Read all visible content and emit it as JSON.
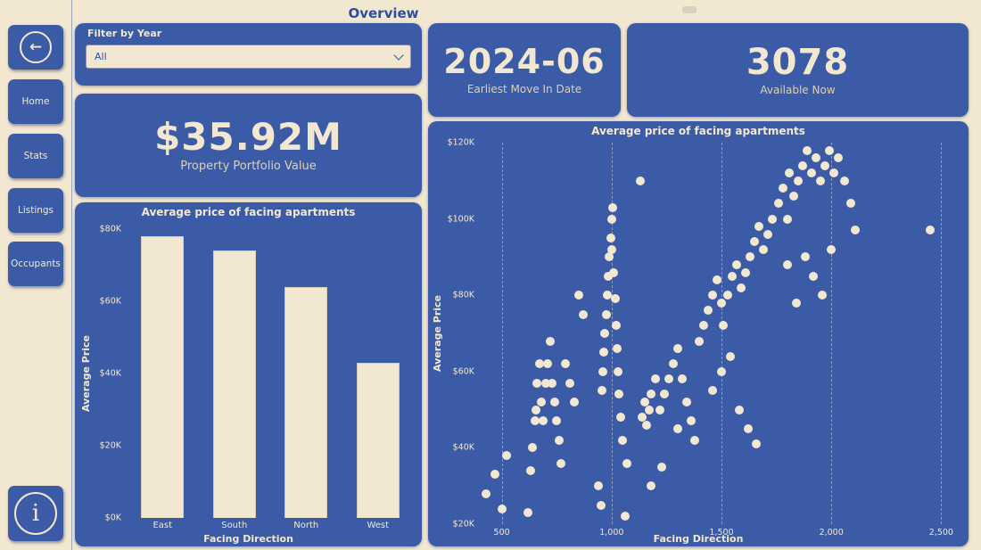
{
  "page": {
    "title": "Overview"
  },
  "sidebar": {
    "items": [
      {
        "label": "Home"
      },
      {
        "label": "Stats"
      },
      {
        "label": "Listings"
      },
      {
        "label": "Occupants"
      }
    ]
  },
  "icons": {
    "back_arrow": "←",
    "info": "i"
  },
  "filter": {
    "label": "Filter by Year",
    "value": "All"
  },
  "kpis": [
    {
      "value": "2024-06",
      "label": "Earliest Move In Date"
    },
    {
      "value": "3078",
      "label": "Available Now"
    },
    {
      "value": "$35.92M",
      "label": "Property Portfolio Value"
    }
  ],
  "colors": {
    "blue": "#3c5ba6",
    "cream": "#f2e8d2"
  },
  "chart_data": [
    {
      "type": "bar",
      "title": "Average price of facing apartments",
      "xlabel": "Facing Direction",
      "ylabel": "Average Price",
      "categories": [
        "East",
        "South",
        "North",
        "West"
      ],
      "values": [
        78,
        74,
        64,
        43
      ],
      "value_unit": "thousand USD",
      "ylim": [
        0,
        80
      ],
      "yticks": [
        {
          "v": 0,
          "label": "$0K"
        },
        {
          "v": 20,
          "label": "$20K"
        },
        {
          "v": 40,
          "label": "$40K"
        },
        {
          "v": 60,
          "label": "$60K"
        },
        {
          "v": 80,
          "label": "$80K"
        }
      ],
      "grid": "off",
      "legend": "none"
    },
    {
      "type": "scatter",
      "title": "Average price of facing apartments",
      "xlabel": "Facing Direction",
      "ylabel": "Average Price",
      "xlim": [
        400,
        2600
      ],
      "ylim": [
        20,
        120
      ],
      "y_unit": "thousand USD",
      "xticks": [
        {
          "v": 500,
          "label": "500"
        },
        {
          "v": 1000,
          "label": "1,000"
        },
        {
          "v": 1500,
          "label": "1,500"
        },
        {
          "v": 2000,
          "label": "2,000"
        },
        {
          "v": 2500,
          "label": "2,500"
        }
      ],
      "yticks": [
        {
          "v": 20,
          "label": "$20K"
        },
        {
          "v": 40,
          "label": "$40K"
        },
        {
          "v": 60,
          "label": "$60K"
        },
        {
          "v": 80,
          "label": "$80K"
        },
        {
          "v": 100,
          "label": "$100K"
        },
        {
          "v": 120,
          "label": "$120K"
        }
      ],
      "grid": "vertical-dashed",
      "legend": "none",
      "points": [
        [
          430,
          28
        ],
        [
          470,
          33
        ],
        [
          500,
          24
        ],
        [
          520,
          38
        ],
        [
          620,
          23
        ],
        [
          630,
          34
        ],
        [
          640,
          40
        ],
        [
          650,
          47
        ],
        [
          655,
          50
        ],
        [
          660,
          57
        ],
        [
          670,
          62
        ],
        [
          680,
          52
        ],
        [
          690,
          47
        ],
        [
          700,
          57
        ],
        [
          710,
          62
        ],
        [
          720,
          68
        ],
        [
          730,
          57
        ],
        [
          740,
          52
        ],
        [
          750,
          47
        ],
        [
          760,
          42
        ],
        [
          770,
          36
        ],
        [
          790,
          62
        ],
        [
          810,
          57
        ],
        [
          830,
          52
        ],
        [
          850,
          80
        ],
        [
          870,
          75
        ],
        [
          940,
          30
        ],
        [
          950,
          25
        ],
        [
          955,
          55
        ],
        [
          960,
          60
        ],
        [
          965,
          65
        ],
        [
          970,
          70
        ],
        [
          975,
          75
        ],
        [
          980,
          80
        ],
        [
          985,
          85
        ],
        [
          990,
          90
        ],
        [
          995,
          95
        ],
        [
          1000,
          100
        ],
        [
          1000,
          92
        ],
        [
          1005,
          103
        ],
        [
          1010,
          86
        ],
        [
          1015,
          79
        ],
        [
          1020,
          72
        ],
        [
          1025,
          66
        ],
        [
          1030,
          60
        ],
        [
          1035,
          54
        ],
        [
          1040,
          48
        ],
        [
          1050,
          42
        ],
        [
          1060,
          22
        ],
        [
          1070,
          36
        ],
        [
          1130,
          110
        ],
        [
          1140,
          48
        ],
        [
          1150,
          52
        ],
        [
          1160,
          46
        ],
        [
          1170,
          50
        ],
        [
          1180,
          54
        ],
        [
          1200,
          58
        ],
        [
          1220,
          50
        ],
        [
          1240,
          54
        ],
        [
          1260,
          58
        ],
        [
          1280,
          62
        ],
        [
          1300,
          66
        ],
        [
          1320,
          58
        ],
        [
          1340,
          52
        ],
        [
          1360,
          47
        ],
        [
          1380,
          42
        ],
        [
          1230,
          35
        ],
        [
          1180,
          30
        ],
        [
          1300,
          45
        ],
        [
          1400,
          68
        ],
        [
          1420,
          72
        ],
        [
          1440,
          76
        ],
        [
          1460,
          80
        ],
        [
          1480,
          84
        ],
        [
          1500,
          78
        ],
        [
          1510,
          72
        ],
        [
          1530,
          80
        ],
        [
          1550,
          85
        ],
        [
          1570,
          88
        ],
        [
          1590,
          82
        ],
        [
          1610,
          86
        ],
        [
          1630,
          90
        ],
        [
          1650,
          94
        ],
        [
          1670,
          98
        ],
        [
          1690,
          92
        ],
        [
          1710,
          96
        ],
        [
          1730,
          100
        ],
        [
          1460,
          55
        ],
        [
          1500,
          60
        ],
        [
          1540,
          64
        ],
        [
          1580,
          50
        ],
        [
          1620,
          45
        ],
        [
          1660,
          41
        ],
        [
          1760,
          104
        ],
        [
          1780,
          108
        ],
        [
          1800,
          100
        ],
        [
          1810,
          112
        ],
        [
          1830,
          106
        ],
        [
          1850,
          110
        ],
        [
          1870,
          114
        ],
        [
          1890,
          118
        ],
        [
          1910,
          112
        ],
        [
          1930,
          116
        ],
        [
          1950,
          110
        ],
        [
          1970,
          114
        ],
        [
          1990,
          118
        ],
        [
          2010,
          112
        ],
        [
          2030,
          116
        ],
        [
          2060,
          110
        ],
        [
          2090,
          104
        ],
        [
          2110,
          97
        ],
        [
          1880,
          90
        ],
        [
          1920,
          85
        ],
        [
          1960,
          80
        ],
        [
          1840,
          78
        ],
        [
          1800,
          88
        ],
        [
          2000,
          92
        ],
        [
          2450,
          97
        ]
      ]
    }
  ]
}
